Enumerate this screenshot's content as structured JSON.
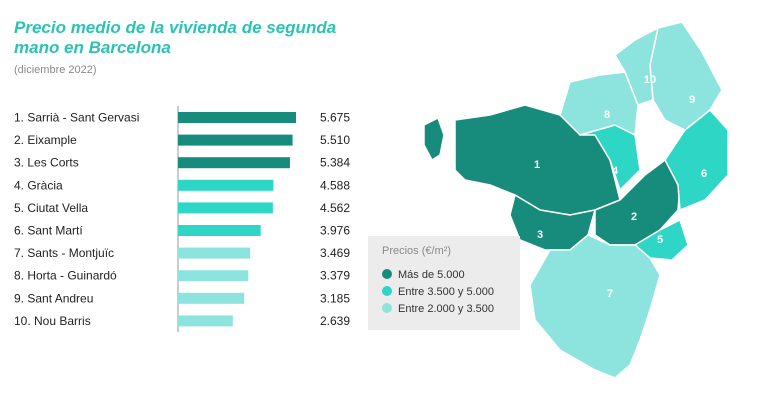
{
  "header": {
    "title": "Precio medio de la vivienda de segunda mano en Barcelona",
    "subtitle": "(diciembre 2022)"
  },
  "colors": {
    "high": "#178c7d",
    "mid": "#2dd6c5",
    "low": "#8de4df",
    "title": "#2cc3b4",
    "map_label": "#ffffff"
  },
  "chart_data": {
    "type": "bar",
    "orientation": "horizontal",
    "categories": [
      "1. Sarrià - Sant Gervasi",
      "2. Eixample",
      "3. Les Corts",
      "4. Gràcia",
      "5. Ciutat Vella",
      "6. Sant Martí",
      "7. Sants - Montjuïc",
      "8. Horta - Guinardó",
      "9. Sant Andreu",
      "10. Nou Barris"
    ],
    "values": [
      5675,
      5510,
      5384,
      4588,
      4562,
      3976,
      3469,
      3379,
      3185,
      2639
    ],
    "value_labels": [
      "5.675",
      "5.510",
      "5.384",
      "4.588",
      "4.562",
      "3.976",
      "3.469",
      "3.379",
      "3.185",
      "2.639"
    ],
    "tiers": [
      "high",
      "high",
      "high",
      "mid",
      "mid",
      "mid",
      "low",
      "low",
      "low",
      "low"
    ],
    "xlim": [
      0,
      5675
    ],
    "title": "Precio medio de la vivienda de segunda mano en Barcelona",
    "xlabel": "",
    "ylabel": "",
    "grid": false
  },
  "map": {
    "district_labels": [
      "1",
      "2",
      "3",
      "4",
      "5",
      "6",
      "7",
      "8",
      "9",
      "10"
    ],
    "district_tiers": [
      "high",
      "high",
      "high",
      "mid",
      "mid",
      "mid",
      "low",
      "low",
      "low",
      "low"
    ]
  },
  "legend": {
    "title": "Precios (€/m²)",
    "items": [
      {
        "label": "Más de 5.000",
        "tier": "high"
      },
      {
        "label": "Entre 3.500 y 5.000",
        "tier": "mid"
      },
      {
        "label": "Entre 2.000 y 3.500",
        "tier": "low"
      }
    ]
  }
}
